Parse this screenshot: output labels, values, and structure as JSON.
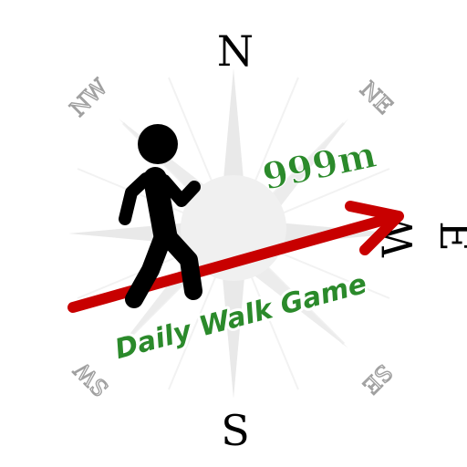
{
  "compass": {
    "north": "N",
    "south": "S",
    "east": "E",
    "west": "W",
    "northeast": "NE",
    "northwest": "NW",
    "southeast": "SE",
    "southwest": "SW"
  },
  "distance": "999m",
  "title": "Daily Walk Game",
  "icons": {
    "walker": "walking-person-icon",
    "arrow": "direction-arrow-icon",
    "rose": "compass-rose-icon"
  },
  "colors": {
    "walker": "#000000",
    "arrow": "#c80000",
    "text_green": "#2b8a2b",
    "rose": "#ececec",
    "intercardinal_outline": "#a0a0a0"
  }
}
